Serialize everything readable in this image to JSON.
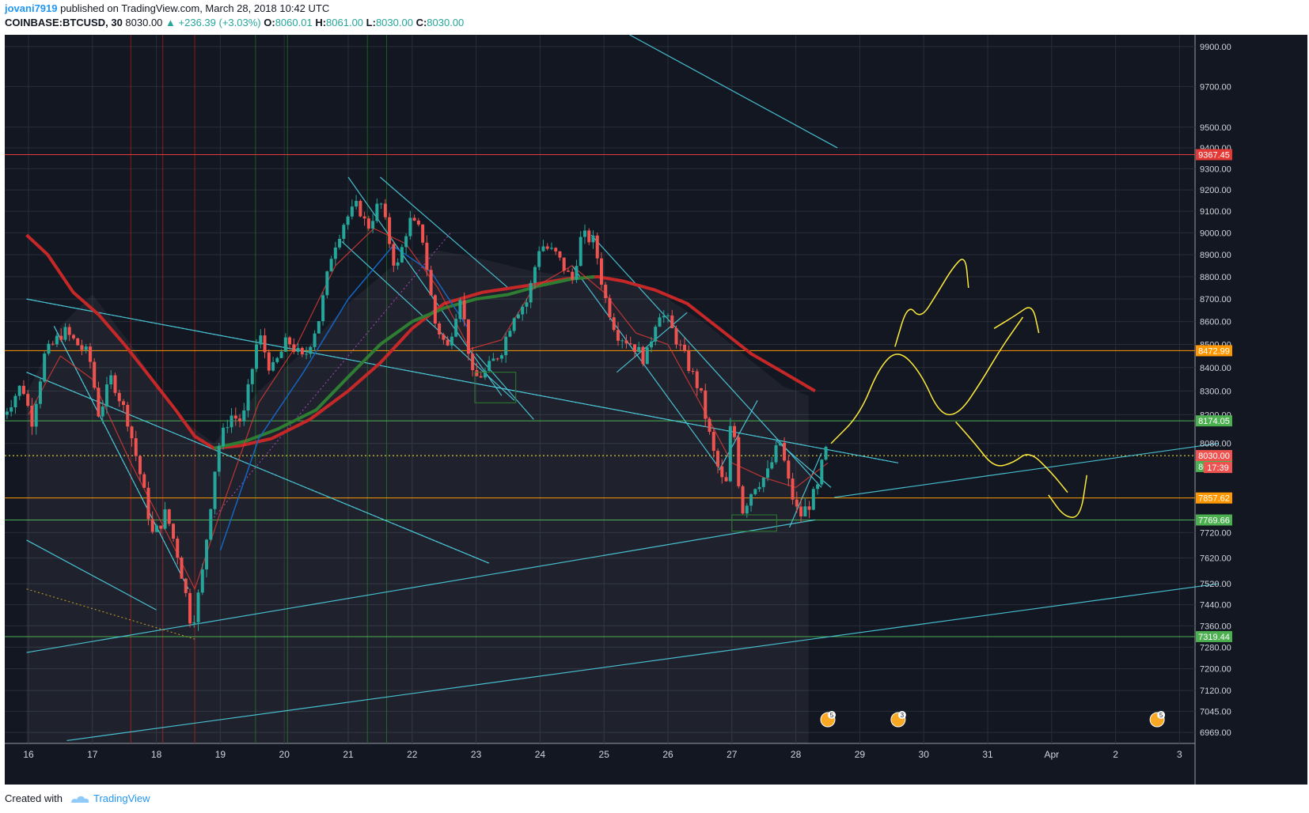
{
  "header": {
    "user": "jovani7919",
    "published": " published on TradingView.com, March 28, 2018 10:42 UTC",
    "symbol": "COINBASE:BTCUSD, 30",
    "last": "8030.00",
    "change": "▲ +236.39 (+3.03%)",
    "o_label": "O:",
    "o_val": "8060.01",
    "h_label": "H:",
    "h_val": "8061.00",
    "l_label": "L:",
    "l_val": "8030.00",
    "c_label": "C:",
    "c_val": "8030.00"
  },
  "footer": {
    "created_with": "Created with",
    "brand": "TradingView"
  },
  "colors": {
    "background": "#131722",
    "grid": "#2a2e39",
    "up": "#26a69a",
    "down": "#ef5350",
    "trendline": "#4dd0e1",
    "ma_red": "#c62828",
    "ma_green": "#2e7d32",
    "level_green": "#4caf50",
    "level_orange": "#ff9800",
    "level_red": "#e53935",
    "forecast": "#ffeb3b"
  },
  "chart_data": {
    "type": "candlestick",
    "title": "",
    "symbol": "COINBASE:BTCUSD",
    "interval": "30",
    "x_tick_labels": [
      "16",
      "17",
      "18",
      "19",
      "20",
      "21",
      "22",
      "23",
      "24",
      "25",
      "26",
      "27",
      "28",
      "29",
      "30",
      "31",
      "Apr",
      "2",
      "3"
    ],
    "y_tick_labels": [
      "9900.00",
      "9700.00",
      "9500.00",
      "9400.00",
      "9300.00",
      "9200.00",
      "9100.00",
      "9000.00",
      "8900.00",
      "8800.00",
      "8700.00",
      "8600.00",
      "8500.00",
      "8400.00",
      "8300.00",
      "8200.00",
      "8080.00",
      "7720.00",
      "7620.00",
      "7520.00",
      "7440.00",
      "7360.00",
      "7280.00",
      "7200.00",
      "7120.00",
      "7045.00",
      "6969.00"
    ],
    "price_scale": "log",
    "ylim": [
      6930,
      9960
    ],
    "grid": true,
    "price_levels": [
      {
        "label": "9367.45",
        "value": 9367.45,
        "color": "#e53935",
        "style": "solid"
      },
      {
        "label": "8472.99",
        "value": 8472.99,
        "color": "#ff9800",
        "style": "solid"
      },
      {
        "label": "8174.05",
        "value": 8174.05,
        "color": "#4caf50",
        "style": "solid"
      },
      {
        "label": "8030.00",
        "value": 8030.0,
        "color": "#ffeb3b",
        "style": "dotted",
        "badge": "#ef5350"
      },
      {
        "label": "8025.41",
        "value": 7985,
        "color": "#4caf50",
        "style": "none"
      },
      {
        "label": "7857.62",
        "value": 7857.62,
        "color": "#ff9800",
        "style": "solid"
      },
      {
        "label": "7769.66",
        "value": 7769.66,
        "color": "#4caf50",
        "style": "solid"
      },
      {
        "label": "7319.44",
        "value": 7319.44,
        "color": "#4caf50",
        "style": "solid"
      }
    ],
    "countdown": "17:39",
    "ohlc": {
      "open": 8060.01,
      "high": 8061.0,
      "low": 8030.0,
      "close": 8030.0
    },
    "change": 236.39,
    "change_pct": 3.03,
    "events": [
      "5",
      "3",
      "5"
    ],
    "pivots": [
      {
        "day": 15.6,
        "price": 8200
      },
      {
        "day": 15.9,
        "price": 8330
      },
      {
        "day": 16.05,
        "price": 8170
      },
      {
        "day": 16.25,
        "price": 8450
      },
      {
        "day": 16.55,
        "price": 8560
      },
      {
        "day": 16.95,
        "price": 8450
      },
      {
        "day": 17.1,
        "price": 8200
      },
      {
        "day": 17.3,
        "price": 8360
      },
      {
        "day": 17.55,
        "price": 8180
      },
      {
        "day": 17.75,
        "price": 7950
      },
      {
        "day": 17.95,
        "price": 7700
      },
      {
        "day": 18.15,
        "price": 7800
      },
      {
        "day": 18.35,
        "price": 7620
      },
      {
        "day": 18.55,
        "price": 7360
      },
      {
        "day": 18.7,
        "price": 7520
      },
      {
        "day": 18.95,
        "price": 8050
      },
      {
        "day": 19.15,
        "price": 8200
      },
      {
        "day": 19.35,
        "price": 8170
      },
      {
        "day": 19.6,
        "price": 8550
      },
      {
        "day": 19.8,
        "price": 8380
      },
      {
        "day": 20.05,
        "price": 8520
      },
      {
        "day": 20.3,
        "price": 8430
      },
      {
        "day": 20.55,
        "price": 8620
      },
      {
        "day": 20.75,
        "price": 8920
      },
      {
        "day": 20.95,
        "price": 9060
      },
      {
        "day": 21.15,
        "price": 9130
      },
      {
        "day": 21.3,
        "price": 9020
      },
      {
        "day": 21.5,
        "price": 9150
      },
      {
        "day": 21.75,
        "price": 8820
      },
      {
        "day": 21.95,
        "price": 9060
      },
      {
        "day": 22.15,
        "price": 9000
      },
      {
        "day": 22.35,
        "price": 8600
      },
      {
        "day": 22.55,
        "price": 8480
      },
      {
        "day": 22.75,
        "price": 8720
      },
      {
        "day": 22.95,
        "price": 8350
      },
      {
        "day": 23.15,
        "price": 8380
      },
      {
        "day": 23.4,
        "price": 8480
      },
      {
        "day": 23.6,
        "price": 8640
      },
      {
        "day": 23.8,
        "price": 8690
      },
      {
        "day": 24.0,
        "price": 8950
      },
      {
        "day": 24.25,
        "price": 8900
      },
      {
        "day": 24.5,
        "price": 8780
      },
      {
        "day": 24.65,
        "price": 8990
      },
      {
        "day": 24.85,
        "price": 8960
      },
      {
        "day": 25.0,
        "price": 8720
      },
      {
        "day": 25.2,
        "price": 8550
      },
      {
        "day": 25.45,
        "price": 8500
      },
      {
        "day": 25.65,
        "price": 8430
      },
      {
        "day": 25.85,
        "price": 8650
      },
      {
        "day": 26.0,
        "price": 8600
      },
      {
        "day": 26.25,
        "price": 8450
      },
      {
        "day": 26.5,
        "price": 8300
      },
      {
        "day": 26.7,
        "price": 8050
      },
      {
        "day": 26.9,
        "price": 7880
      },
      {
        "day": 27.0,
        "price": 8220
      },
      {
        "day": 27.15,
        "price": 7800
      },
      {
        "day": 27.35,
        "price": 7910
      },
      {
        "day": 27.55,
        "price": 7950
      },
      {
        "day": 27.75,
        "price": 8090
      },
      {
        "day": 27.9,
        "price": 7900
      },
      {
        "day": 28.05,
        "price": 7780
      },
      {
        "day": 28.2,
        "price": 7830
      },
      {
        "day": 28.35,
        "price": 7900
      },
      {
        "day": 28.45,
        "price": 8060
      },
      {
        "day": 28.5,
        "price": 8030
      }
    ]
  }
}
